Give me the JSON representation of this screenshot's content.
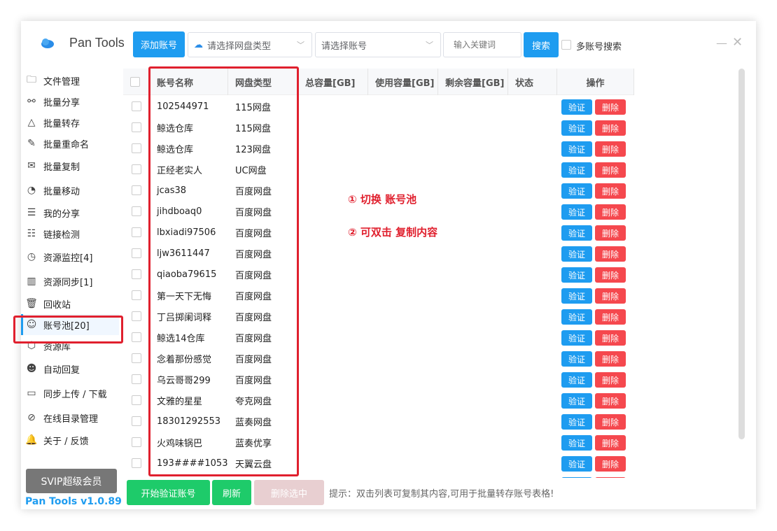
{
  "app": {
    "title": "Pan Tools",
    "version": "Pan Tools v1.0.89"
  },
  "toolbar": {
    "add_account": "添加账号",
    "disk_type_placeholder": "请选择网盘类型",
    "account_placeholder": "请选择账号",
    "keyword_placeholder": "输入关键词",
    "search": "搜索",
    "multi_search": "多账号搜索"
  },
  "sidebar": {
    "items": [
      {
        "label": "文件管理",
        "icon": "folder-icon"
      },
      {
        "label": "批量分享",
        "icon": "share-icon"
      },
      {
        "label": "批量转存",
        "icon": "transfer-icon"
      },
      {
        "label": "批量重命名",
        "icon": "rename-icon"
      },
      {
        "label": "批量复制",
        "icon": "copy-icon"
      },
      {
        "label": "批量移动",
        "icon": "move-icon"
      },
      {
        "label": "我的分享",
        "icon": "my-share-icon"
      },
      {
        "label": "链接检测",
        "icon": "link-check-icon"
      },
      {
        "label": "资源监控[4]",
        "icon": "monitor-icon"
      },
      {
        "label": "资源同步[1]",
        "icon": "sync-icon"
      },
      {
        "label": "回收站",
        "icon": "trash-icon"
      },
      {
        "label": "账号池[20]",
        "icon": "account-pool-icon",
        "active": true
      },
      {
        "label": "资源库",
        "icon": "library-icon"
      },
      {
        "label": "自动回复",
        "icon": "auto-reply-icon"
      },
      {
        "label": "同步上传 / 下载",
        "icon": "upload-download-icon"
      },
      {
        "label": "在线目录管理",
        "icon": "directory-icon"
      },
      {
        "label": "关于 / 反馈",
        "icon": "bell-icon"
      }
    ],
    "svip": "SVIP超级会员"
  },
  "table": {
    "columns": [
      "账号名称",
      "网盘类型",
      "总容量[GB]",
      "使用容量[GB]",
      "剩余容量[GB]",
      "状态",
      "操作"
    ],
    "verify": "验证",
    "delete": "删除",
    "rows": [
      [
        "102544971",
        "115网盘"
      ],
      [
        "鲸选仓库",
        "115网盘"
      ],
      [
        "鲸选仓库",
        "123网盘"
      ],
      [
        "正经老实人",
        "UC网盘"
      ],
      [
        "jcas38",
        "百度网盘"
      ],
      [
        "jihdboaq0",
        "百度网盘"
      ],
      [
        "lbxiadi97506",
        "百度网盘"
      ],
      [
        "ljw3611447",
        "百度网盘"
      ],
      [
        "qiaoba79615",
        "百度网盘"
      ],
      [
        "第一天下无悔",
        "百度网盘"
      ],
      [
        "丁吕掷阑词释",
        "百度网盘"
      ],
      [
        "鲸选14仓库",
        "百度网盘"
      ],
      [
        "念着那份感觉",
        "百度网盘"
      ],
      [
        "乌云哥哥299",
        "百度网盘"
      ],
      [
        "文雅的星星",
        "夸克网盘"
      ],
      [
        "18301292553",
        "蓝奏网盘"
      ],
      [
        "火鸡味锅巴",
        "蓝奏优享"
      ],
      [
        "193####1053",
        "天翼云盘"
      ]
    ]
  },
  "annotations": [
    "① 切换 账号池",
    "② 可双击 复制内容"
  ],
  "footer": {
    "start_verify": "开始验证账号",
    "refresh": "刷新",
    "delete_selected": "删除选中",
    "hint": "提示：双击列表可复制其内容,可用于批量转存账号表格!"
  },
  "colors": {
    "primary": "#1e9cf0",
    "danger": "#f5484e",
    "success": "#1ecb6a",
    "highlight": "#e0202e"
  }
}
